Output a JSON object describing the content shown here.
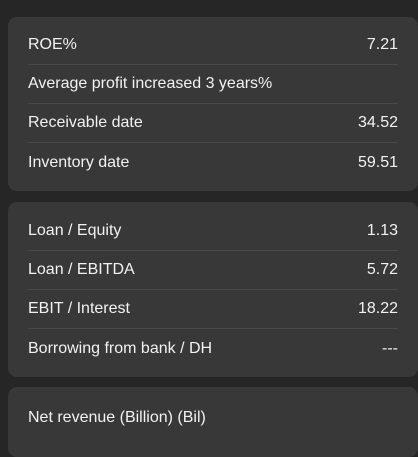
{
  "group1": {
    "rows": [
      {
        "label": "ROE%",
        "value": "7.21"
      },
      {
        "label": "Average profit increased 3 years%",
        "value": ""
      },
      {
        "label": "Receivable date",
        "value": "34.52"
      },
      {
        "label": "Inventory date",
        "value": "59.51"
      }
    ]
  },
  "group2": {
    "rows": [
      {
        "label": "Loan / Equity",
        "value": "1.13"
      },
      {
        "label": "Loan / EBITDA",
        "value": "5.72"
      },
      {
        "label": "EBIT / Interest",
        "value": "18.22"
      },
      {
        "label": "Borrowing from bank / DH",
        "value": "---"
      }
    ]
  },
  "group3": {
    "rows": [
      {
        "label": "Net revenue (Billion) (Bil)",
        "value": ""
      }
    ]
  }
}
